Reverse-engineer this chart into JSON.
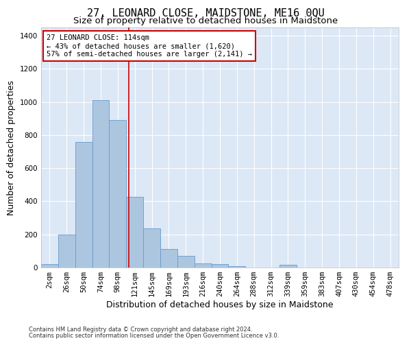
{
  "title": "27, LEONARD CLOSE, MAIDSTONE, ME16 0QU",
  "subtitle": "Size of property relative to detached houses in Maidstone",
  "xlabel": "Distribution of detached houses by size in Maidstone",
  "ylabel": "Number of detached properties",
  "footnote1": "Contains HM Land Registry data © Crown copyright and database right 2024.",
  "footnote2": "Contains public sector information licensed under the Open Government Licence v3.0.",
  "bar_labels": [
    "2sqm",
    "26sqm",
    "50sqm",
    "74sqm",
    "98sqm",
    "121sqm",
    "145sqm",
    "169sqm",
    "193sqm",
    "216sqm",
    "240sqm",
    "264sqm",
    "288sqm",
    "312sqm",
    "339sqm",
    "359sqm",
    "383sqm",
    "407sqm",
    "430sqm",
    "454sqm",
    "478sqm"
  ],
  "bar_heights": [
    20,
    200,
    760,
    1010,
    890,
    425,
    235,
    110,
    70,
    25,
    20,
    10,
    0,
    0,
    15,
    0,
    0,
    0,
    0,
    0,
    0
  ],
  "bar_color": "#adc6e0",
  "bar_edge_color": "#6699cc",
  "vline_x_index": 4.65,
  "vline_color": "#cc0000",
  "ylim": [
    0,
    1450
  ],
  "yticks": [
    0,
    200,
    400,
    600,
    800,
    1000,
    1200,
    1400
  ],
  "annotation_text": "27 LEONARD CLOSE: 114sqm\n← 43% of detached houses are smaller (1,620)\n57% of semi-detached houses are larger (2,141) →",
  "annotation_box_color": "#cc0000",
  "bg_color": "#dce8f5",
  "grid_color": "#ffffff",
  "title_fontsize": 11,
  "subtitle_fontsize": 9.5,
  "xlabel_fontsize": 9,
  "ylabel_fontsize": 9,
  "tick_fontsize": 7.5,
  "annot_fontsize": 7.5,
  "footnote_fontsize": 6
}
